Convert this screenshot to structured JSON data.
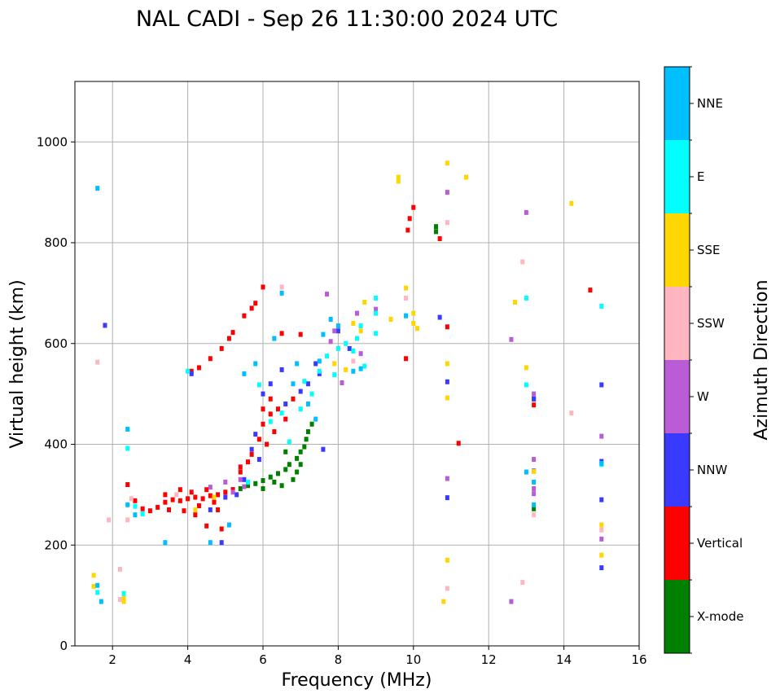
{
  "chart_data": {
    "type": "scatter",
    "title": "NAL CADI - Sep 26 11:30:00 2024 UTC",
    "xlabel": "Frequency (MHz)",
    "ylabel": "Virtual height (km)",
    "xlim": [
      1,
      16
    ],
    "ylim": [
      0,
      1120
    ],
    "xticks": [
      2,
      4,
      6,
      8,
      10,
      12,
      14,
      16
    ],
    "yticks": [
      0,
      200,
      400,
      600,
      800,
      1000
    ],
    "grid": true,
    "colorbar": {
      "title": "Azimuth Direction",
      "categories": [
        {
          "label": "X-mode",
          "color": "#008000"
        },
        {
          "label": "Vertical",
          "color": "#ff0000"
        },
        {
          "label": "NNW",
          "color": "#3a3aff"
        },
        {
          "label": "W",
          "color": "#b95cd6"
        },
        {
          "label": "SSW",
          "color": "#ffb6c1"
        },
        {
          "label": "SSE",
          "color": "#ffd700"
        },
        {
          "label": "E",
          "color": "#00ffff"
        },
        {
          "label": "NNE",
          "color": "#00bfff"
        }
      ]
    },
    "series": [
      {
        "name": "X-mode",
        "points": [
          [
            5.2,
            310
          ],
          [
            5.4,
            312
          ],
          [
            5.6,
            318
          ],
          [
            5.8,
            322
          ],
          [
            6.0,
            328
          ],
          [
            6.2,
            335
          ],
          [
            6.4,
            342
          ],
          [
            6.6,
            350
          ],
          [
            6.7,
            360
          ],
          [
            6.9,
            372
          ],
          [
            7.0,
            385
          ],
          [
            7.1,
            395
          ],
          [
            7.15,
            410
          ],
          [
            7.2,
            425
          ],
          [
            7.3,
            440
          ],
          [
            6.8,
            330
          ],
          [
            6.5,
            318
          ],
          [
            6.3,
            325
          ],
          [
            7.0,
            360
          ],
          [
            6.6,
            385
          ],
          [
            10.6,
            832
          ],
          [
            10.6,
            822
          ],
          [
            13.2,
            272
          ],
          [
            6.0,
            312
          ],
          [
            6.9,
            345
          ]
        ]
      },
      {
        "name": "Vertical",
        "points": [
          [
            2.4,
            320
          ],
          [
            2.6,
            288
          ],
          [
            2.8,
            272
          ],
          [
            3.0,
            268
          ],
          [
            3.2,
            275
          ],
          [
            3.4,
            285
          ],
          [
            3.6,
            290
          ],
          [
            3.8,
            288
          ],
          [
            4.0,
            292
          ],
          [
            4.2,
            295
          ],
          [
            4.4,
            292
          ],
          [
            4.6,
            298
          ],
          [
            4.8,
            300
          ],
          [
            5.0,
            305
          ],
          [
            5.2,
            310
          ],
          [
            3.5,
            270
          ],
          [
            3.9,
            268
          ],
          [
            4.3,
            278
          ],
          [
            4.7,
            285
          ],
          [
            4.1,
            305
          ],
          [
            4.5,
            310
          ],
          [
            5.4,
            345
          ],
          [
            5.7,
            380
          ],
          [
            5.9,
            410
          ],
          [
            6.0,
            440
          ],
          [
            6.2,
            460
          ],
          [
            6.4,
            470
          ],
          [
            6.6,
            450
          ],
          [
            6.0,
            470
          ],
          [
            4.1,
            545
          ],
          [
            4.3,
            552
          ],
          [
            4.6,
            570
          ],
          [
            4.9,
            590
          ],
          [
            5.1,
            610
          ],
          [
            5.2,
            622
          ],
          [
            5.5,
            655
          ],
          [
            5.7,
            670
          ],
          [
            5.8,
            680
          ],
          [
            6.0,
            712
          ],
          [
            6.5,
            620
          ],
          [
            7.0,
            618
          ],
          [
            6.2,
            490
          ],
          [
            6.8,
            490
          ],
          [
            6.3,
            425
          ],
          [
            9.8,
            570
          ],
          [
            9.85,
            825
          ],
          [
            9.9,
            848
          ],
          [
            10.0,
            870
          ],
          [
            10.7,
            808
          ],
          [
            10.9,
            633
          ],
          [
            11.2,
            402
          ],
          [
            13.2,
            478
          ],
          [
            13.2,
            490
          ],
          [
            14.7,
            706
          ],
          [
            4.5,
            238
          ],
          [
            4.9,
            232
          ],
          [
            5.4,
            355
          ],
          [
            5.6,
            365
          ],
          [
            6.1,
            400
          ],
          [
            3.4,
            300
          ],
          [
            3.8,
            310
          ],
          [
            4.2,
            260
          ],
          [
            4.8,
            270
          ]
        ]
      },
      {
        "name": "NNW",
        "points": [
          [
            1.8,
            636
          ],
          [
            4.1,
            540
          ],
          [
            4.6,
            270
          ],
          [
            5.0,
            295
          ],
          [
            5.3,
            300
          ],
          [
            5.5,
            330
          ],
          [
            5.7,
            390
          ],
          [
            5.8,
            420
          ],
          [
            6.0,
            500
          ],
          [
            6.2,
            520
          ],
          [
            6.6,
            480
          ],
          [
            7.0,
            505
          ],
          [
            7.2,
            520
          ],
          [
            7.5,
            540
          ],
          [
            7.6,
            390
          ],
          [
            8.0,
            625
          ],
          [
            10.7,
            652
          ],
          [
            10.9,
            524
          ],
          [
            10.9,
            294
          ],
          [
            13.2,
            490
          ],
          [
            13.2,
            347
          ],
          [
            15.0,
            518
          ],
          [
            15.0,
            366
          ],
          [
            15.0,
            290
          ],
          [
            15.0,
            155
          ],
          [
            4.9,
            205
          ],
          [
            6.5,
            548
          ],
          [
            7.4,
            560
          ],
          [
            8.3,
            590
          ],
          [
            5.9,
            370
          ]
        ]
      },
      {
        "name": "W",
        "points": [
          [
            4.6,
            315
          ],
          [
            5.0,
            325
          ],
          [
            5.4,
            330
          ],
          [
            5.2,
            305
          ],
          [
            7.7,
            698
          ],
          [
            7.9,
            625
          ],
          [
            8.1,
            522
          ],
          [
            8.5,
            660
          ],
          [
            9.0,
            668
          ],
          [
            10.9,
            900
          ],
          [
            10.9,
            332
          ],
          [
            12.6,
            608
          ],
          [
            13.0,
            860
          ],
          [
            13.2,
            500
          ],
          [
            13.2,
            370
          ],
          [
            13.2,
            312
          ],
          [
            13.2,
            302
          ],
          [
            15.0,
            416
          ],
          [
            15.0,
            212
          ],
          [
            12.6,
            88
          ],
          [
            7.8,
            604
          ],
          [
            8.6,
            580
          ],
          [
            5.5,
            316
          ]
        ]
      },
      {
        "name": "SSW",
        "points": [
          [
            1.6,
            563
          ],
          [
            1.9,
            250
          ],
          [
            2.2,
            152
          ],
          [
            2.2,
            92
          ],
          [
            2.4,
            250
          ],
          [
            2.5,
            292
          ],
          [
            6.5,
            712
          ],
          [
            9.8,
            690
          ],
          [
            10.9,
            840
          ],
          [
            10.9,
            114
          ],
          [
            12.9,
            762
          ],
          [
            12.9,
            126
          ],
          [
            13.2,
            260
          ],
          [
            14.2,
            462
          ],
          [
            15.0,
            230
          ],
          [
            3.7,
            300
          ],
          [
            8.4,
            565
          ]
        ]
      },
      {
        "name": "SSE",
        "points": [
          [
            1.5,
            140
          ],
          [
            1.5,
            118
          ],
          [
            2.3,
            95
          ],
          [
            2.3,
            88
          ],
          [
            4.2,
            270
          ],
          [
            8.4,
            640
          ],
          [
            8.6,
            625
          ],
          [
            8.7,
            682
          ],
          [
            9.6,
            930
          ],
          [
            9.6,
            922
          ],
          [
            9.8,
            710
          ],
          [
            10.0,
            660
          ],
          [
            10.0,
            640
          ],
          [
            10.1,
            630
          ],
          [
            10.8,
            88
          ],
          [
            10.9,
            958
          ],
          [
            10.9,
            560
          ],
          [
            10.9,
            492
          ],
          [
            10.9,
            170
          ],
          [
            11.4,
            930
          ],
          [
            12.7,
            682
          ],
          [
            13.0,
            552
          ],
          [
            13.2,
            346
          ],
          [
            14.2,
            878
          ],
          [
            15.0,
            240
          ],
          [
            15.0,
            180
          ],
          [
            7.9,
            560
          ],
          [
            8.2,
            548
          ],
          [
            9.4,
            648
          ],
          [
            4.7,
            295
          ]
        ]
      },
      {
        "name": "E",
        "points": [
          [
            1.6,
            106
          ],
          [
            2.3,
            104
          ],
          [
            2.4,
            392
          ],
          [
            2.6,
            277
          ],
          [
            2.8,
            262
          ],
          [
            4.0,
            545
          ],
          [
            5.6,
            325
          ],
          [
            6.2,
            445
          ],
          [
            6.5,
            462
          ],
          [
            7.0,
            470
          ],
          [
            7.3,
            500
          ],
          [
            7.5,
            545
          ],
          [
            7.7,
            575
          ],
          [
            8.0,
            590
          ],
          [
            8.2,
            600
          ],
          [
            8.4,
            585
          ],
          [
            8.5,
            610
          ],
          [
            8.6,
            635
          ],
          [
            9.0,
            620
          ],
          [
            9.0,
            660
          ],
          [
            9.0,
            690
          ],
          [
            8.7,
            555
          ],
          [
            13.0,
            690
          ],
          [
            13.0,
            518
          ],
          [
            15.0,
            674
          ],
          [
            15.0,
            360
          ],
          [
            6.7,
            405
          ],
          [
            7.1,
            525
          ],
          [
            7.9,
            538
          ],
          [
            5.9,
            518
          ]
        ]
      },
      {
        "name": "NNE",
        "points": [
          [
            1.6,
            908
          ],
          [
            1.6,
            120
          ],
          [
            1.7,
            88
          ],
          [
            2.4,
            430
          ],
          [
            2.4,
            280
          ],
          [
            2.6,
            260
          ],
          [
            3.4,
            205
          ],
          [
            5.5,
            540
          ],
          [
            5.8,
            560
          ],
          [
            6.3,
            610
          ],
          [
            6.5,
            700
          ],
          [
            6.8,
            520
          ],
          [
            7.2,
            480
          ],
          [
            7.5,
            565
          ],
          [
            7.6,
            618
          ],
          [
            7.8,
            648
          ],
          [
            8.0,
            635
          ],
          [
            8.4,
            545
          ],
          [
            8.6,
            550
          ],
          [
            9.8,
            655
          ],
          [
            13.0,
            345
          ],
          [
            13.2,
            325
          ],
          [
            13.2,
            280
          ],
          [
            15.0,
            362
          ],
          [
            6.9,
            560
          ],
          [
            7.4,
            450
          ],
          [
            5.1,
            240
          ],
          [
            4.6,
            205
          ]
        ]
      }
    ]
  }
}
